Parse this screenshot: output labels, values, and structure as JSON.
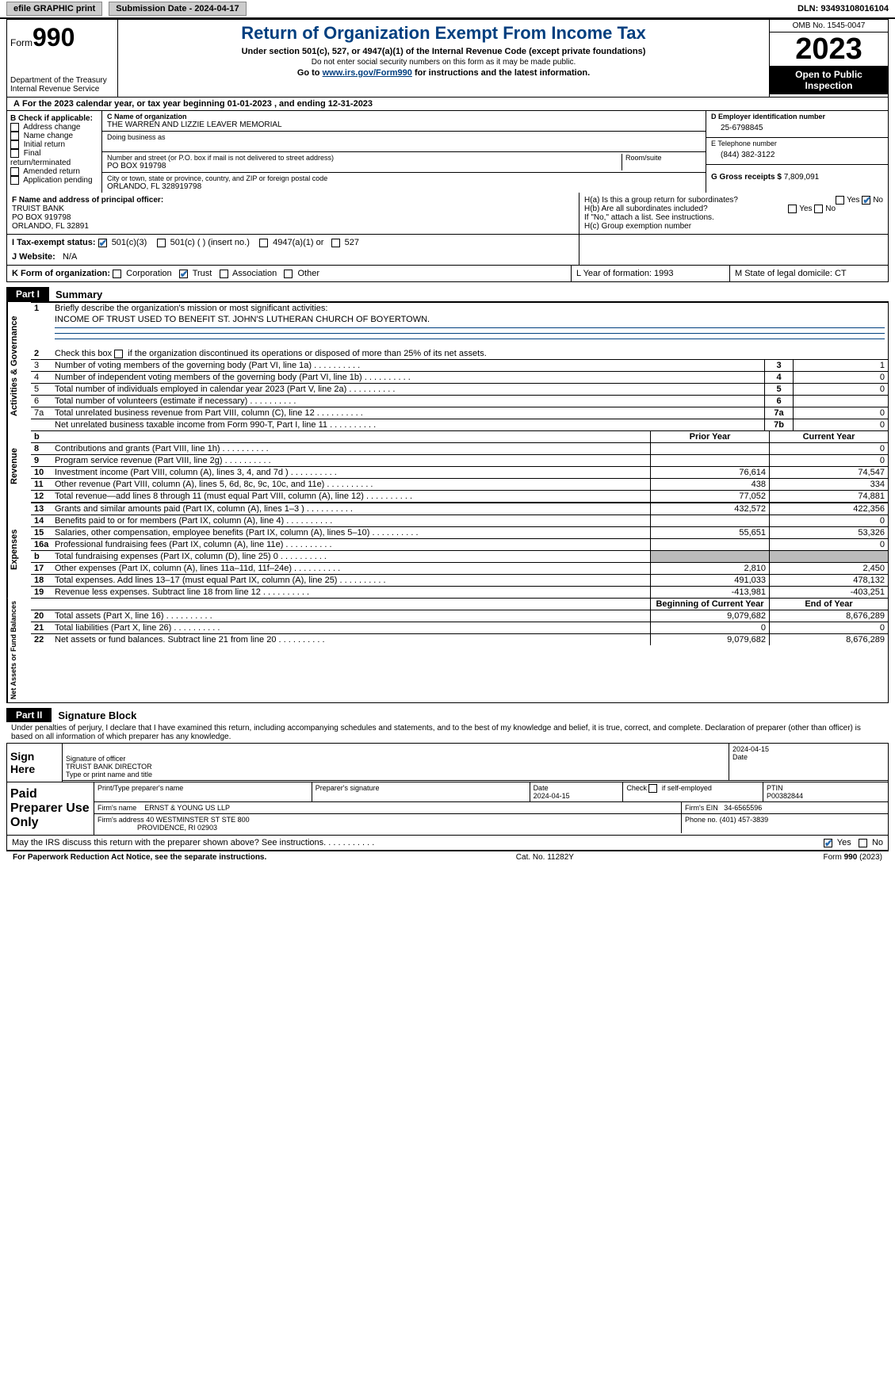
{
  "topbar": {
    "efile": "efile GRAPHIC print",
    "submission": "Submission Date - 2024-04-17",
    "dln_label": "DLN:",
    "dln": "93493108016104"
  },
  "header": {
    "form_label": "Form",
    "form_num": "990",
    "dept": "Department of the Treasury\nInternal Revenue Service",
    "title": "Return of Organization Exempt From Income Tax",
    "sub1": "Under section 501(c), 527, or 4947(a)(1) of the Internal Revenue Code (except private foundations)",
    "sub2": "Do not enter social security numbers on this form as it may be made public.",
    "sub3_a": "Go to ",
    "sub3_link": "www.irs.gov/Form990",
    "sub3_b": " for instructions and the latest information.",
    "omb": "OMB No. 1545-0047",
    "year": "2023",
    "open": "Open to Public Inspection"
  },
  "A": {
    "text": "For the 2023 calendar year, or tax year beginning 01-01-2023   , and ending 12-31-2023"
  },
  "B": {
    "label": "B Check if applicable:",
    "opts": [
      "Address change",
      "Name change",
      "Initial return",
      "Final return/terminated",
      "Amended return",
      "Application pending"
    ]
  },
  "C": {
    "name_label": "C Name of organization",
    "name": "THE WARREN AND LIZZIE LEAVER MEMORIAL",
    "dba_label": "Doing business as",
    "street_label": "Number and street (or P.O. box if mail is not delivered to street address)",
    "room_label": "Room/suite",
    "street": "PO BOX 919798",
    "city_label": "City or town, state or province, country, and ZIP or foreign postal code",
    "city": "ORLANDO, FL  328919798"
  },
  "D": {
    "label": "D Employer identification number",
    "val": "25-6798845"
  },
  "E": {
    "label": "E Telephone number",
    "val": "(844) 382-3122"
  },
  "G": {
    "label": "G Gross receipts $",
    "val": "7,809,091"
  },
  "F": {
    "label": "F  Name and address of principal officer:",
    "lines": [
      "TRUIST BANK",
      "PO BOX 919798",
      "ORLANDO, FL  32891"
    ]
  },
  "H": {
    "a": "H(a)  Is this a group return for subordinates?",
    "b": "H(b)  Are all subordinates included?",
    "b2": "If \"No,\" attach a list. See instructions.",
    "c": "H(c)  Group exemption number",
    "yes": "Yes",
    "no": "No"
  },
  "I": {
    "label": "I   Tax-exempt status:",
    "o1": "501(c)(3)",
    "o2": "501(c) (  ) (insert no.)",
    "o3": "4947(a)(1) or",
    "o4": "527"
  },
  "J": {
    "label": "J   Website:",
    "val": "N/A"
  },
  "K": {
    "label": "K Form of organization:",
    "opts": [
      "Corporation",
      "Trust",
      "Association",
      "Other"
    ],
    "L": "L Year of formation: 1993",
    "M": "M State of legal domicile: CT"
  },
  "partI": {
    "tag": "Part I",
    "title": "Summary"
  },
  "gov": {
    "l1a": "Briefly describe the organization's mission or most significant activities:",
    "l1b": "INCOME OF TRUST USED TO BENEFIT ST. JOHN'S LUTHERAN CHURCH OF BOYERTOWN.",
    "l2": "Check this box      if the organization discontinued its operations or disposed of more than 25% of its net assets.",
    "rows": [
      {
        "n": "3",
        "t": "Number of voting members of the governing body (Part VI, line 1a)",
        "c": "3",
        "v": "1"
      },
      {
        "n": "4",
        "t": "Number of independent voting members of the governing body (Part VI, line 1b)",
        "c": "4",
        "v": "0"
      },
      {
        "n": "5",
        "t": "Total number of individuals employed in calendar year 2023 (Part V, line 2a)",
        "c": "5",
        "v": "0"
      },
      {
        "n": "6",
        "t": "Total number of volunteers (estimate if necessary)",
        "c": "6",
        "v": ""
      },
      {
        "n": "7a",
        "t": "Total unrelated business revenue from Part VIII, column (C), line 12",
        "c": "7a",
        "v": "0"
      },
      {
        "n": "",
        "t": "Net unrelated business taxable income from Form 990-T, Part I, line 11",
        "c": "7b",
        "v": "0"
      }
    ]
  },
  "headers2": {
    "prior": "Prior Year",
    "current": "Current Year",
    "begin": "Beginning of Current Year",
    "end": "End of Year"
  },
  "rev": [
    {
      "n": "8",
      "t": "Contributions and grants (Part VIII, line 1h)",
      "p": "",
      "c": "0"
    },
    {
      "n": "9",
      "t": "Program service revenue (Part VIII, line 2g)",
      "p": "",
      "c": "0"
    },
    {
      "n": "10",
      "t": "Investment income (Part VIII, column (A), lines 3, 4, and 7d )",
      "p": "76,614",
      "c": "74,547"
    },
    {
      "n": "11",
      "t": "Other revenue (Part VIII, column (A), lines 5, 6d, 8c, 9c, 10c, and 11e)",
      "p": "438",
      "c": "334"
    },
    {
      "n": "12",
      "t": "Total revenue—add lines 8 through 11 (must equal Part VIII, column (A), line 12)",
      "p": "77,052",
      "c": "74,881"
    }
  ],
  "exp": [
    {
      "n": "13",
      "t": "Grants and similar amounts paid (Part IX, column (A), lines 1–3 )",
      "p": "432,572",
      "c": "422,356"
    },
    {
      "n": "14",
      "t": "Benefits paid to or for members (Part IX, column (A), line 4)",
      "p": "",
      "c": "0"
    },
    {
      "n": "15",
      "t": "Salaries, other compensation, employee benefits (Part IX, column (A), lines 5–10)",
      "p": "55,651",
      "c": "53,326"
    },
    {
      "n": "16a",
      "t": "Professional fundraising fees (Part IX, column (A), line 11e)",
      "p": "",
      "c": "0"
    },
    {
      "n": "b",
      "t": "Total fundraising expenses (Part IX, column (D), line 25) 0",
      "p": "grey",
      "c": "grey"
    },
    {
      "n": "17",
      "t": "Other expenses (Part IX, column (A), lines 11a–11d, 11f–24e)",
      "p": "2,810",
      "c": "2,450"
    },
    {
      "n": "18",
      "t": "Total expenses. Add lines 13–17 (must equal Part IX, column (A), line 25)",
      "p": "491,033",
      "c": "478,132"
    },
    {
      "n": "19",
      "t": "Revenue less expenses. Subtract line 18 from line 12",
      "p": "-413,981",
      "c": "-403,251"
    }
  ],
  "net": [
    {
      "n": "20",
      "t": "Total assets (Part X, line 16)",
      "p": "9,079,682",
      "c": "8,676,289"
    },
    {
      "n": "21",
      "t": "Total liabilities (Part X, line 26)",
      "p": "0",
      "c": "0"
    },
    {
      "n": "22",
      "t": "Net assets or fund balances. Subtract line 21 from line 20",
      "p": "9,079,682",
      "c": "8,676,289"
    }
  ],
  "vlabels": {
    "gov": "Activities & Governance",
    "rev": "Revenue",
    "exp": "Expenses",
    "net": "Net Assets or Fund Balances"
  },
  "partII": {
    "tag": "Part II",
    "title": "Signature Block"
  },
  "sig": {
    "declare": "Under penalties of perjury, I declare that I have examined this return, including accompanying schedules and statements, and to the best of my knowledge and belief, it is true, correct, and complete. Declaration of preparer (other than officer) is based on all information of which preparer has any knowledge.",
    "sign_here": "Sign Here",
    "sig_officer": "Signature of officer",
    "date": "Date",
    "date_val": "2024-04-15",
    "name": "TRUIST BANK  DIRECTOR",
    "name_label": "Type or print name and title"
  },
  "prep": {
    "label": "Paid Preparer Use Only",
    "h": [
      "Print/Type preparer's name",
      "Preparer's signature",
      "Date",
      "",
      "PTIN"
    ],
    "date": "2024-04-15",
    "check": "Check       if self-employed",
    "ptin": "P00382844",
    "firm_label": "Firm's name",
    "firm": "ERNST & YOUNG US LLP",
    "ein_label": "Firm's EIN",
    "ein": "34-6565596",
    "addr_label": "Firm's address",
    "addr1": "40 WESTMINSTER ST STE 800",
    "addr2": "PROVIDENCE, RI  02903",
    "phone_label": "Phone no.",
    "phone": "(401) 457-3839"
  },
  "irs_discuss": "May the IRS discuss this return with the preparer shown above? See instructions.",
  "footer": {
    "paperwork": "For Paperwork Reduction Act Notice, see the separate instructions.",
    "cat": "Cat. No. 11282Y",
    "form": "Form 990 (2023)"
  }
}
